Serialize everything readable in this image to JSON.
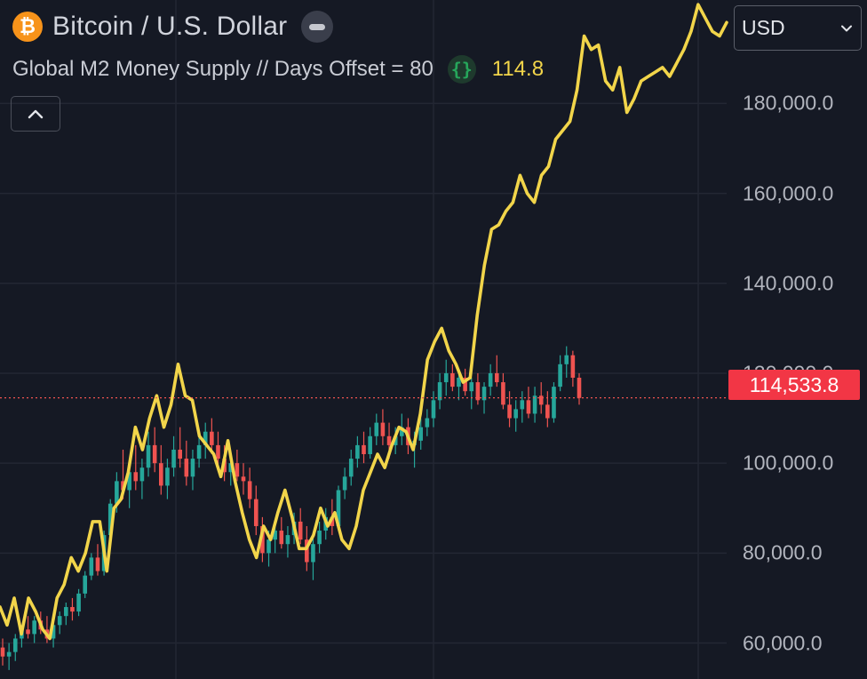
{
  "header": {
    "symbol_title": "Bitcoin / U.S. Dollar",
    "icon": "bitcoin-icon",
    "icon_glyph": "₿"
  },
  "indicator": {
    "name": "Global M2 Money Supply // Days Offset = 80",
    "icon": "braces-icon",
    "icon_glyph": "{}",
    "value": "114.8",
    "color": "#f2d54a"
  },
  "toolbar": {
    "currency": "USD",
    "toggle_icon": "chevron-up-icon"
  },
  "price_axis": {
    "labels": [
      "180,000.0",
      "160,000.0",
      "140,000.0",
      "120,000.0",
      "100,000.0",
      "80,000.0",
      "60,000.0"
    ],
    "last_price_label": "114,533.8",
    "last_price_color": "#f23645"
  },
  "chart_data": {
    "type": "line",
    "ylim": [
      52000,
      203000
    ],
    "y_ticks": [
      60000,
      80000,
      100000,
      120000,
      140000,
      160000,
      180000
    ],
    "grid": true,
    "last_price": 114533.8,
    "colors": {
      "up": "#26a69a",
      "down": "#ef5350",
      "m2": "#f2d54a",
      "background": "#151924",
      "grid": "#232733"
    },
    "m2_line": {
      "values": [
        68000,
        64000,
        70000,
        62000,
        70000,
        67000,
        63000,
        61000,
        70000,
        73000,
        79000,
        76000,
        80000,
        87000,
        87000,
        76000,
        90000,
        92000,
        98000,
        108000,
        103000,
        110000,
        115000,
        108000,
        113000,
        122000,
        115000,
        114000,
        106000,
        104000,
        102000,
        97000,
        105000,
        96000,
        89000,
        83000,
        79000,
        86000,
        83000,
        89000,
        94000,
        88000,
        81000,
        81000,
        84000,
        90000,
        86000,
        89000,
        83000,
        81000,
        86000,
        94000,
        98000,
        102000,
        99000,
        104000,
        108000,
        107000,
        103000,
        111000,
        123000,
        127000,
        130000,
        125000,
        122000,
        118000,
        119000,
        133000,
        144000,
        152000,
        153000,
        156000,
        158000,
        164000,
        160000,
        158000,
        164000,
        166000,
        172000,
        174000,
        176000,
        183000,
        195000,
        192000,
        193000,
        185000,
        183000,
        188000,
        178000,
        181000,
        185000,
        186000,
        187000,
        188000,
        186000,
        189000,
        192000,
        196000,
        202000,
        199000,
        196000,
        195000,
        198000
      ]
    },
    "candles": [
      {
        "o": 59000,
        "h": 61000,
        "l": 55000,
        "c": 57000
      },
      {
        "o": 57000,
        "h": 60000,
        "l": 54000,
        "c": 58000
      },
      {
        "o": 58000,
        "h": 62000,
        "l": 56000,
        "c": 61000
      },
      {
        "o": 61000,
        "h": 64000,
        "l": 59000,
        "c": 63000
      },
      {
        "o": 63000,
        "h": 66000,
        "l": 61000,
        "c": 62000
      },
      {
        "o": 62000,
        "h": 66000,
        "l": 60000,
        "c": 65000
      },
      {
        "o": 65000,
        "h": 67000,
        "l": 62000,
        "c": 63000
      },
      {
        "o": 63000,
        "h": 66000,
        "l": 60000,
        "c": 61000
      },
      {
        "o": 61000,
        "h": 65000,
        "l": 59000,
        "c": 64000
      },
      {
        "o": 64000,
        "h": 67000,
        "l": 62000,
        "c": 66000
      },
      {
        "o": 66000,
        "h": 69000,
        "l": 64000,
        "c": 68000
      },
      {
        "o": 68000,
        "h": 70000,
        "l": 65000,
        "c": 67000
      },
      {
        "o": 67000,
        "h": 72000,
        "l": 66000,
        "c": 71000
      },
      {
        "o": 71000,
        "h": 76000,
        "l": 70000,
        "c": 75000
      },
      {
        "o": 75000,
        "h": 80000,
        "l": 74000,
        "c": 79000
      },
      {
        "o": 79000,
        "h": 82000,
        "l": 75000,
        "c": 76000
      },
      {
        "o": 76000,
        "h": 85000,
        "l": 75000,
        "c": 84000
      },
      {
        "o": 84000,
        "h": 92000,
        "l": 83000,
        "c": 91000
      },
      {
        "o": 91000,
        "h": 98000,
        "l": 89000,
        "c": 96000
      },
      {
        "o": 96000,
        "h": 103000,
        "l": 92000,
        "c": 94000
      },
      {
        "o": 94000,
        "h": 100000,
        "l": 90000,
        "c": 98000
      },
      {
        "o": 98000,
        "h": 104000,
        "l": 94000,
        "c": 96000
      },
      {
        "o": 96000,
        "h": 101000,
        "l": 92000,
        "c": 99000
      },
      {
        "o": 99000,
        "h": 107000,
        "l": 97000,
        "c": 104000
      },
      {
        "o": 104000,
        "h": 108000,
        "l": 98000,
        "c": 100000
      },
      {
        "o": 100000,
        "h": 104000,
        "l": 93000,
        "c": 95000
      },
      {
        "o": 95000,
        "h": 101000,
        "l": 92000,
        "c": 99000
      },
      {
        "o": 99000,
        "h": 106000,
        "l": 97000,
        "c": 103000
      },
      {
        "o": 103000,
        "h": 108000,
        "l": 99000,
        "c": 101000
      },
      {
        "o": 101000,
        "h": 105000,
        "l": 95000,
        "c": 97000
      },
      {
        "o": 97000,
        "h": 103000,
        "l": 94000,
        "c": 101000
      },
      {
        "o": 101000,
        "h": 106000,
        "l": 99000,
        "c": 104000
      },
      {
        "o": 104000,
        "h": 109000,
        "l": 101000,
        "c": 107000
      },
      {
        "o": 107000,
        "h": 110000,
        "l": 102000,
        "c": 104000
      },
      {
        "o": 104000,
        "h": 107000,
        "l": 99000,
        "c": 101000
      },
      {
        "o": 101000,
        "h": 104000,
        "l": 96000,
        "c": 98000
      },
      {
        "o": 98000,
        "h": 102000,
        "l": 95000,
        "c": 100000
      },
      {
        "o": 100000,
        "h": 103000,
        "l": 96000,
        "c": 97000
      },
      {
        "o": 97000,
        "h": 100000,
        "l": 93000,
        "c": 96000
      },
      {
        "o": 96000,
        "h": 99000,
        "l": 90000,
        "c": 92000
      },
      {
        "o": 92000,
        "h": 95000,
        "l": 84000,
        "c": 86000
      },
      {
        "o": 86000,
        "h": 88000,
        "l": 78000,
        "c": 80000
      },
      {
        "o": 80000,
        "h": 85000,
        "l": 77000,
        "c": 83000
      },
      {
        "o": 83000,
        "h": 87000,
        "l": 80000,
        "c": 85000
      },
      {
        "o": 85000,
        "h": 88000,
        "l": 81000,
        "c": 82000
      },
      {
        "o": 82000,
        "h": 86000,
        "l": 79000,
        "c": 84000
      },
      {
        "o": 84000,
        "h": 89000,
        "l": 82000,
        "c": 87000
      },
      {
        "o": 87000,
        "h": 90000,
        "l": 82000,
        "c": 83000
      },
      {
        "o": 83000,
        "h": 86000,
        "l": 76000,
        "c": 78000
      },
      {
        "o": 78000,
        "h": 84000,
        "l": 74000,
        "c": 82000
      },
      {
        "o": 82000,
        "h": 87000,
        "l": 80000,
        "c": 85000
      },
      {
        "o": 85000,
        "h": 90000,
        "l": 83000,
        "c": 88000
      },
      {
        "o": 88000,
        "h": 92000,
        "l": 84000,
        "c": 86000
      },
      {
        "o": 86000,
        "h": 95000,
        "l": 85000,
        "c": 94000
      },
      {
        "o": 94000,
        "h": 99000,
        "l": 92000,
        "c": 97000
      },
      {
        "o": 97000,
        "h": 103000,
        "l": 95000,
        "c": 101000
      },
      {
        "o": 101000,
        "h": 106000,
        "l": 99000,
        "c": 104000
      },
      {
        "o": 104000,
        "h": 107000,
        "l": 100000,
        "c": 102000
      },
      {
        "o": 102000,
        "h": 108000,
        "l": 101000,
        "c": 106000
      },
      {
        "o": 106000,
        "h": 111000,
        "l": 104000,
        "c": 109000
      },
      {
        "o": 109000,
        "h": 112000,
        "l": 104000,
        "c": 106000
      },
      {
        "o": 106000,
        "h": 109000,
        "l": 101000,
        "c": 104000
      },
      {
        "o": 104000,
        "h": 108000,
        "l": 102000,
        "c": 106000
      },
      {
        "o": 106000,
        "h": 111000,
        "l": 104000,
        "c": 108000
      },
      {
        "o": 108000,
        "h": 110000,
        "l": 102000,
        "c": 104000
      },
      {
        "o": 104000,
        "h": 107000,
        "l": 99000,
        "c": 105000
      },
      {
        "o": 105000,
        "h": 110000,
        "l": 103000,
        "c": 108000
      },
      {
        "o": 108000,
        "h": 112000,
        "l": 106000,
        "c": 110000
      },
      {
        "o": 110000,
        "h": 116000,
        "l": 108000,
        "c": 114000
      },
      {
        "o": 114000,
        "h": 120000,
        "l": 112000,
        "c": 118000
      },
      {
        "o": 118000,
        "h": 123000,
        "l": 115000,
        "c": 120000
      },
      {
        "o": 120000,
        "h": 122000,
        "l": 116000,
        "c": 117000
      },
      {
        "o": 117000,
        "h": 121000,
        "l": 114000,
        "c": 119000
      },
      {
        "o": 119000,
        "h": 121000,
        "l": 115000,
        "c": 116000
      },
      {
        "o": 116000,
        "h": 119000,
        "l": 112000,
        "c": 118000
      },
      {
        "o": 118000,
        "h": 120000,
        "l": 113000,
        "c": 114000
      },
      {
        "o": 114000,
        "h": 118000,
        "l": 111000,
        "c": 117000
      },
      {
        "o": 117000,
        "h": 122000,
        "l": 115000,
        "c": 120000
      },
      {
        "o": 120000,
        "h": 124000,
        "l": 117000,
        "c": 118000
      },
      {
        "o": 118000,
        "h": 120000,
        "l": 112000,
        "c": 113000
      },
      {
        "o": 113000,
        "h": 116000,
        "l": 108000,
        "c": 110000
      },
      {
        "o": 110000,
        "h": 114000,
        "l": 107000,
        "c": 112000
      },
      {
        "o": 112000,
        "h": 116000,
        "l": 109000,
        "c": 114000
      },
      {
        "o": 114000,
        "h": 117000,
        "l": 110000,
        "c": 111000
      },
      {
        "o": 111000,
        "h": 117000,
        "l": 109000,
        "c": 115000
      },
      {
        "o": 115000,
        "h": 118000,
        "l": 111000,
        "c": 113000
      },
      {
        "o": 113000,
        "h": 116000,
        "l": 108000,
        "c": 110000
      },
      {
        "o": 110000,
        "h": 118000,
        "l": 109000,
        "c": 117000
      },
      {
        "o": 117000,
        "h": 124000,
        "l": 116000,
        "c": 122000
      },
      {
        "o": 122000,
        "h": 126000,
        "l": 119000,
        "c": 124000
      },
      {
        "o": 124000,
        "h": 125000,
        "l": 117000,
        "c": 119000
      },
      {
        "o": 119000,
        "h": 120000,
        "l": 113000,
        "c": 114500
      }
    ]
  }
}
